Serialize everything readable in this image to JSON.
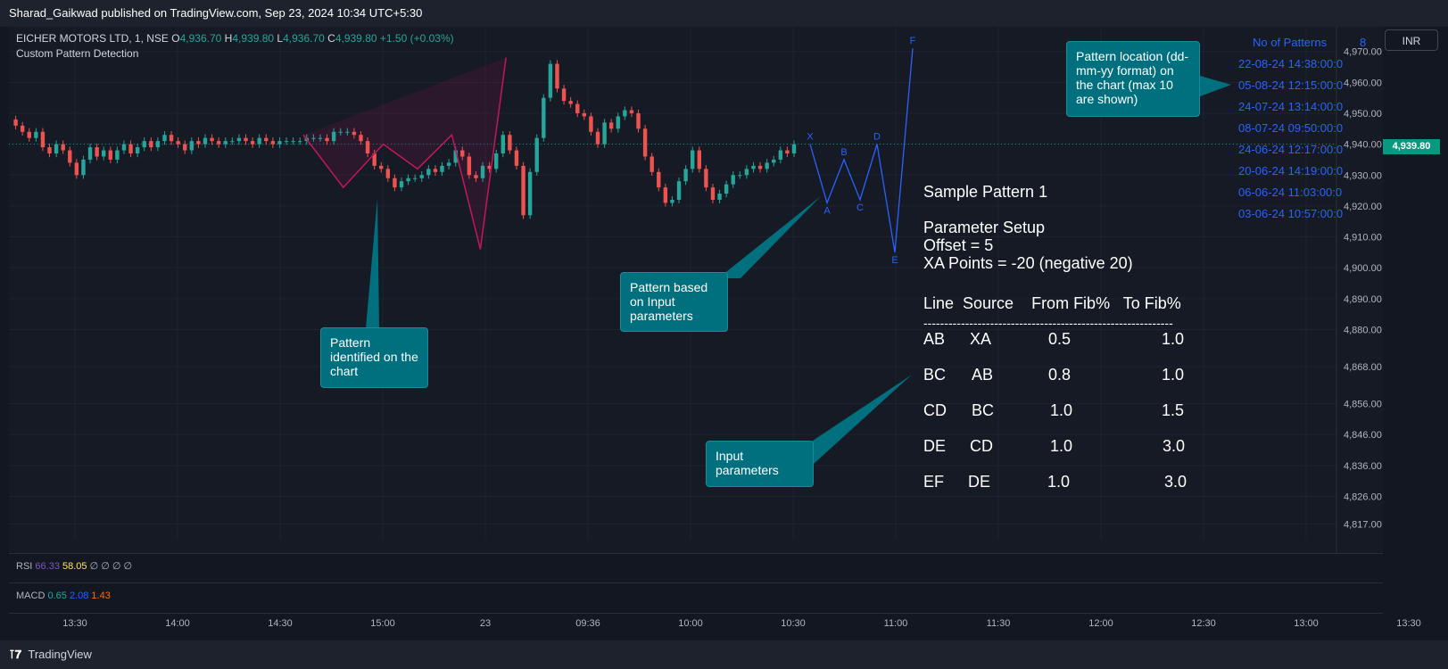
{
  "header": {
    "published": "Sharad_Gaikwad published on TradingView.com, Sep 23, 2024 10:34 UTC+5:30"
  },
  "legend": {
    "symbol": "EICHER MOTORS LTD, 1, NSE",
    "o_label": "O",
    "o": "4,936.70",
    "h_label": "H",
    "h": "4,939.80",
    "l_label": "L",
    "l": "4,936.70",
    "c_label": "C",
    "c": "4,939.80",
    "change": "+1.50 (+0.03%)",
    "subtitle": "Custom Pattern Detection"
  },
  "currency": "INR",
  "last_price": "4,939.80",
  "indicators": {
    "rsi_label": "RSI",
    "rsi_v1": "66.33",
    "rsi_v2": "58.05",
    "rsi_rest": "∅ ∅ ∅ ∅",
    "macd_label": "MACD",
    "macd_v1": "0.65",
    "macd_v2": "2.08",
    "macd_v3": "1.43"
  },
  "callouts": {
    "location": "Pattern location (dd-mm-yy format) on the chart (max 10 are shown)",
    "identified": "Pattern identified on the chart",
    "based": "Pattern based on Input parameters",
    "input": "Input parameters"
  },
  "params": {
    "title": "Sample Pattern 1",
    "setup": "Parameter Setup",
    "offset": "Offset = 5",
    "xa": "XA Points = -20 (negative 20)",
    "header": "Line  Source    From Fib%   To Fib%",
    "divider": "------------------------------------------------------------",
    "rows": [
      {
        "line": "AB",
        "source": "XA",
        "from": "0.5",
        "to": "1.0"
      },
      {
        "line": "BC",
        "source": "AB",
        "from": "0.8",
        "to": "1.0"
      },
      {
        "line": "CD",
        "source": "BC",
        "from": "1.0",
        "to": "1.5"
      },
      {
        "line": "DE",
        "source": "CD",
        "from": "1.0",
        "to": "3.0"
      },
      {
        "line": "EF",
        "source": "DE",
        "from": "1.0",
        "to": "3.0"
      }
    ]
  },
  "patterns": {
    "label": "No of Patterns",
    "count": "8",
    "items": [
      "22-08-24 14:38:00:0",
      "05-08-24 12:15:00:0",
      "24-07-24 13:14:00:0",
      "08-07-24 09:50:00:0",
      "24-06-24 12:17:00:0",
      "20-06-24 14:19:00:0",
      "06-06-24 11:03:00:0",
      "03-06-24 10:57:00:0"
    ]
  },
  "footer": {
    "brand": "TradingView"
  },
  "chart_data": {
    "type": "line",
    "title": "EICHER MOTORS LTD, 1, NSE",
    "ylim": [
      4812,
      4978
    ],
    "price_ticks": [
      "4,970.00",
      "4,960.00",
      "4,950.00",
      "4,940.00",
      "4,930.00",
      "4,920.00",
      "4,910.00",
      "4,900.00",
      "4,890.00",
      "4,880.00",
      "4,868.00",
      "4,856.00",
      "4,846.00",
      "4,836.00",
      "4,826.00",
      "4,817.00"
    ],
    "price_tick_values": [
      4970,
      4960,
      4950,
      4940,
      4930,
      4920,
      4910,
      4900,
      4890,
      4880,
      4868,
      4856,
      4846,
      4836,
      4826,
      4817
    ],
    "time_ticks": [
      "13:30",
      "14:00",
      "14:30",
      "15:00",
      "23",
      "09:36",
      "10:00",
      "10:30",
      "11:00",
      "11:30",
      "12:00",
      "12:30",
      "13:00",
      "13:30"
    ],
    "close_series": [
      4948,
      4946,
      4944,
      4942,
      4944,
      4939,
      4937,
      4940,
      4938,
      4934,
      4930,
      4935,
      4939,
      4936,
      4938,
      4935,
      4938,
      4940,
      4937,
      4939,
      4941,
      4939,
      4941,
      4943,
      4941,
      4940,
      4938,
      4941,
      4940,
      4942,
      4941,
      4940,
      4941,
      4941,
      4942,
      4941,
      4940,
      4942,
      4941,
      4940,
      4941,
      4941,
      4941,
      4941,
      4942,
      4942,
      4942,
      4941,
      4944,
      4944,
      4944,
      4943,
      4941,
      4937,
      4933,
      4932,
      4929,
      4926,
      4928,
      4929,
      4929,
      4930,
      4932,
      4931,
      4933,
      4934,
      4938,
      4936,
      4930,
      4929,
      4933,
      4932,
      4937,
      4943,
      4938,
      4933,
      4917,
      4931,
      4942,
      4955,
      4966,
      4958,
      4954,
      4953,
      4950,
      4949,
      4944,
      4940,
      4947,
      4945,
      4949,
      4951,
      4950,
      4945,
      4936,
      4931,
      4926,
      4921,
      4922,
      4928,
      4932,
      4938,
      4932,
      4926,
      4922,
      4924,
      4927,
      4930,
      4930,
      4932,
      4933,
      4932,
      4934,
      4935,
      4938,
      4937,
      4940
    ],
    "pattern_identified": [
      [
        0,
        4943
      ],
      [
        14,
        4926
      ],
      [
        28,
        4940
      ],
      [
        40,
        4932
      ],
      [
        52,
        4943
      ],
      [
        62,
        4906
      ],
      [
        71,
        4968
      ]
    ],
    "pattern_projected": {
      "labels": [
        "X",
        "A",
        "B",
        "C",
        "D",
        "E",
        "F"
      ],
      "y": [
        4940,
        4921,
        4935,
        4922,
        4940,
        4905,
        4971
      ]
    },
    "legend": "none",
    "grid": true
  }
}
